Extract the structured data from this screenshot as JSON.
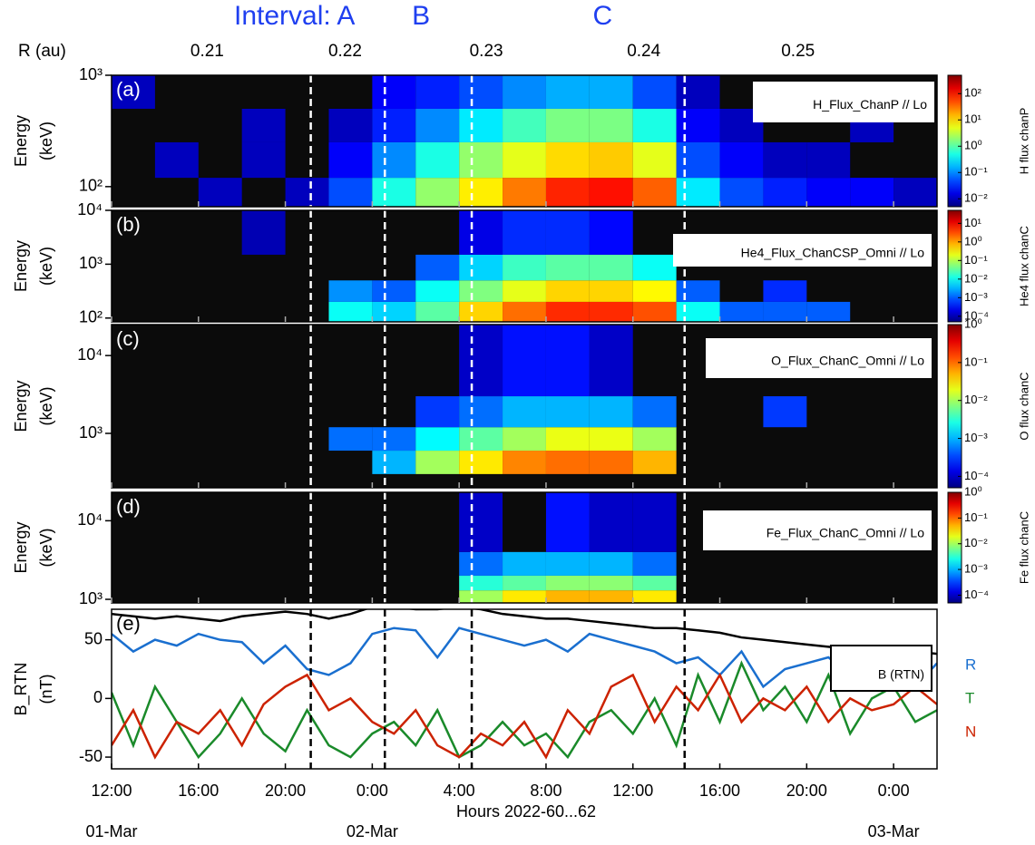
{
  "figure": {
    "xlim": [
      12,
      50
    ],
    "xticks": [
      {
        "value": 12,
        "label": "12:00"
      },
      {
        "value": 16,
        "label": "16:00"
      },
      {
        "value": 20,
        "label": "20:00"
      },
      {
        "value": 24,
        "label": "0:00"
      },
      {
        "value": 28,
        "label": "4:00"
      },
      {
        "value": 32,
        "label": "8:00"
      },
      {
        "value": 36,
        "label": "12:00"
      },
      {
        "value": 40,
        "label": "16:00"
      },
      {
        "value": 44,
        "label": "20:00"
      },
      {
        "value": 48,
        "label": "0:00"
      }
    ],
    "xlabel": "Hours 2022-60...62",
    "date_ticks": [
      {
        "value": 12,
        "label": "01-Mar"
      },
      {
        "value": 24,
        "label": "02-Mar"
      },
      {
        "value": 48,
        "label": "03-Mar"
      }
    ],
    "r_axis": {
      "label": "R (au)",
      "x": [
        16.4,
        22.75,
        29.25,
        36.5,
        43.6
      ],
      "ticks": [
        0.21,
        0.22,
        0.23,
        0.24,
        0.25
      ]
    },
    "intervals": [
      21.17,
      24.58,
      28.58,
      38.38
    ],
    "interval_labels": [
      "Interval: A",
      "B",
      "C"
    ]
  },
  "chart_data": [
    {
      "type": "heatmap",
      "label": "(a)",
      "annotation": "H_Flux_ChanP // Lo",
      "ylabel": [
        "Energy",
        "(keV)"
      ],
      "log_y": true,
      "ylim": [
        66,
        1000
      ],
      "yticks": [
        {
          "value": 100,
          "label": "10²"
        },
        {
          "value": 1000,
          "label": "10³"
        }
      ],
      "x_bins": [
        12,
        14,
        16,
        18,
        20,
        22,
        24,
        26,
        28,
        30,
        32,
        34,
        36,
        38,
        40,
        42,
        44,
        46,
        48,
        50
      ],
      "y_bins": [
        66,
        120,
        250,
        500,
        1000
      ],
      "z": [
        [
          null,
          null,
          0.01,
          null,
          0.01,
          0.05,
          0.5,
          2,
          8,
          30,
          80,
          100,
          40,
          0.3,
          0.05,
          0.03,
          0.02,
          0.02,
          0.01
        ],
        [
          null,
          0.01,
          null,
          0.01,
          null,
          0.02,
          0.1,
          0.5,
          2,
          5,
          10,
          12,
          5,
          0.05,
          0.02,
          0.01,
          0.01,
          null,
          null
        ],
        [
          null,
          null,
          null,
          0.01,
          null,
          0.01,
          0.03,
          0.1,
          0.3,
          0.8,
          1.5,
          1.5,
          0.5,
          0.02,
          0.01,
          null,
          null,
          0.01,
          null
        ],
        [
          0.01,
          null,
          null,
          null,
          null,
          null,
          0.02,
          0.03,
          0.05,
          0.1,
          0.15,
          0.15,
          0.05,
          0.01,
          null,
          null,
          null,
          null,
          null
        ]
      ],
      "colormap": "jet",
      "zlim": [
        0.005,
        500
      ],
      "zticks": [
        {
          "value": 0.01,
          "label": "10⁻²"
        },
        {
          "value": 0.1,
          "label": "10⁻¹"
        },
        {
          "value": 1,
          "label": "10⁰"
        },
        {
          "value": 10,
          "label": "10¹"
        },
        {
          "value": 100,
          "label": "10²"
        }
      ],
      "zlabel": "H flux chanP"
    },
    {
      "type": "heatmap",
      "label": "(b)",
      "annotation": "He4_Flux_ChanCSP_Omni // Lo",
      "ylabel": [
        "Energy",
        "(keV)"
      ],
      "log_y": true,
      "ylim": [
        85,
        10000
      ],
      "yticks": [
        {
          "value": 100,
          "label": "10²"
        },
        {
          "value": 1000,
          "label": "10³"
        },
        {
          "value": 10000,
          "label": "10⁴"
        }
      ],
      "x_bins": [
        12,
        14,
        16,
        18,
        20,
        22,
        24,
        26,
        28,
        30,
        32,
        34,
        36,
        38,
        40,
        42,
        44,
        46,
        48,
        50
      ],
      "y_bins": [
        85,
        200,
        500,
        1500,
        10000
      ],
      "z": [
        [
          null,
          null,
          null,
          null,
          null,
          0.01,
          0.005,
          0.03,
          0.5,
          2,
          5,
          5,
          3,
          0.01,
          0.001,
          0.001,
          0.001,
          null,
          null
        ],
        [
          null,
          null,
          null,
          null,
          null,
          0.002,
          0.001,
          0.01,
          0.05,
          0.2,
          0.5,
          0.5,
          0.3,
          0.001,
          null,
          0.0005,
          null,
          null,
          null
        ],
        [
          null,
          null,
          null,
          null,
          null,
          null,
          null,
          0.001,
          0.005,
          0.02,
          0.03,
          0.03,
          0.01,
          null,
          null,
          null,
          null,
          null,
          null
        ],
        [
          null,
          null,
          null,
          0.0001,
          null,
          null,
          null,
          null,
          0.0002,
          0.0005,
          0.0005,
          0.0003,
          null,
          null,
          null,
          null,
          null,
          null,
          null
        ]
      ],
      "colormap": "jet",
      "zlim": [
        5e-05,
        50
      ],
      "zticks": [
        {
          "value": 0.0001,
          "label": "10⁻⁴"
        },
        {
          "value": 0.001,
          "label": "10⁻³"
        },
        {
          "value": 0.01,
          "label": "10⁻²"
        },
        {
          "value": 0.1,
          "label": "10⁻¹"
        },
        {
          "value": 1,
          "label": "10⁰"
        },
        {
          "value": 10,
          "label": "10¹"
        }
      ],
      "zlabel": "He4 flux chanC"
    },
    {
      "type": "heatmap",
      "label": "(c)",
      "annotation": "O_Flux_ChanC_Omni // Lo",
      "ylabel": [
        "Energy",
        "(keV)"
      ],
      "log_y": true,
      "ylim": [
        200,
        25000
      ],
      "yticks": [
        {
          "value": 1000,
          "label": "10³"
        },
        {
          "value": 10000,
          "label": "10⁴"
        }
      ],
      "x_bins": [
        12,
        14,
        16,
        18,
        20,
        22,
        24,
        26,
        28,
        30,
        32,
        34,
        36,
        38,
        40,
        42,
        44,
        46,
        48,
        50
      ],
      "y_bins": [
        300,
        600,
        1200,
        3000,
        25000
      ],
      "z": [
        [
          null,
          null,
          null,
          null,
          null,
          null,
          0.001,
          0.01,
          0.03,
          0.08,
          0.1,
          0.1,
          0.05,
          null,
          null,
          null,
          null,
          null,
          null
        ],
        [
          null,
          null,
          null,
          null,
          null,
          0.0005,
          0.0005,
          0.002,
          0.005,
          0.01,
          0.02,
          0.02,
          0.01,
          null,
          null,
          null,
          null,
          null,
          null
        ],
        [
          null,
          null,
          null,
          null,
          null,
          null,
          null,
          0.0003,
          0.0005,
          0.001,
          0.001,
          0.001,
          0.0005,
          null,
          null,
          0.0003,
          null,
          null,
          null
        ],
        [
          null,
          null,
          null,
          null,
          null,
          null,
          null,
          null,
          0.0001,
          0.0002,
          0.0002,
          0.0001,
          null,
          null,
          null,
          null,
          null,
          null,
          null
        ]
      ],
      "colormap": "jet",
      "zlim": [
        5e-05,
        1
      ],
      "zticks": [
        {
          "value": 0.0001,
          "label": "10⁻⁴"
        },
        {
          "value": 0.001,
          "label": "10⁻³"
        },
        {
          "value": 0.01,
          "label": "10⁻²"
        },
        {
          "value": 0.1,
          "label": "10⁻¹"
        },
        {
          "value": 1,
          "label": "10⁰"
        }
      ],
      "zlabel": "O flux chanC"
    },
    {
      "type": "heatmap",
      "label": "(d)",
      "annotation": "Fe_Flux_ChanC_Omni // Lo",
      "ylabel": [
        "Energy",
        "(keV)"
      ],
      "log_y": true,
      "ylim": [
        900,
        23000
      ],
      "yticks": [
        {
          "value": 1000,
          "label": "10³"
        },
        {
          "value": 10000,
          "label": "10⁴"
        }
      ],
      "x_bins": [
        12,
        14,
        16,
        18,
        20,
        22,
        24,
        26,
        28,
        30,
        32,
        34,
        36,
        38,
        40,
        42,
        44,
        46,
        48,
        50
      ],
      "y_bins": [
        900,
        1300,
        2000,
        4000,
        23000
      ],
      "z": [
        [
          null,
          null,
          null,
          null,
          null,
          null,
          null,
          null,
          0.01,
          0.03,
          0.05,
          0.05,
          0.03,
          null,
          null,
          null,
          null,
          null,
          null
        ],
        [
          null,
          null,
          null,
          null,
          null,
          null,
          null,
          null,
          0.003,
          0.005,
          0.008,
          0.008,
          0.005,
          null,
          null,
          null,
          null,
          null,
          null
        ],
        [
          null,
          null,
          null,
          null,
          null,
          null,
          null,
          null,
          0.0005,
          0.001,
          0.001,
          0.001,
          0.0005,
          null,
          null,
          null,
          null,
          null,
          null
        ],
        [
          null,
          null,
          null,
          null,
          null,
          null,
          null,
          null,
          0.0001,
          null,
          0.0002,
          0.0001,
          0.0001,
          null,
          null,
          null,
          null,
          null,
          null
        ]
      ],
      "colormap": "jet",
      "zlim": [
        5e-05,
        1
      ],
      "zticks": [
        {
          "value": 0.0001,
          "label": "10⁻⁴"
        },
        {
          "value": 0.001,
          "label": "10⁻³"
        },
        {
          "value": 0.01,
          "label": "10⁻²"
        },
        {
          "value": 0.1,
          "label": "10⁻¹"
        },
        {
          "value": 1,
          "label": "10⁰"
        }
      ],
      "zlabel": "Fe flux chanC"
    },
    {
      "type": "line",
      "label": "(e)",
      "annotation": "B (RTN)",
      "ylabel": [
        "B_RTN",
        "(nT)"
      ],
      "ylim": [
        -60,
        76
      ],
      "yticks": [
        -50,
        0,
        50
      ],
      "x": [
        12,
        13,
        14,
        15,
        16,
        17,
        18,
        19,
        20,
        21,
        22,
        23,
        24,
        25,
        26,
        27,
        28,
        29,
        30,
        31,
        32,
        33,
        34,
        35,
        36,
        37,
        38,
        39,
        40,
        41,
        42,
        43,
        44,
        45,
        46,
        47,
        48,
        49,
        50
      ],
      "series": [
        {
          "color": "#000000",
          "values": [
            72,
            70,
            68,
            70,
            68,
            66,
            70,
            72,
            74,
            72,
            68,
            72,
            78,
            78,
            76,
            76,
            78,
            76,
            72,
            70,
            68,
            68,
            66,
            64,
            62,
            60,
            60,
            58,
            56,
            52,
            50,
            48,
            46,
            44,
            42,
            42,
            40,
            40,
            38
          ]
        },
        {
          "name": "R",
          "color": "#1a6fcf",
          "values": [
            55,
            40,
            50,
            45,
            55,
            50,
            48,
            30,
            45,
            25,
            20,
            30,
            55,
            60,
            58,
            35,
            60,
            55,
            50,
            45,
            50,
            40,
            55,
            50,
            45,
            40,
            30,
            35,
            20,
            40,
            10,
            25,
            30,
            35,
            20,
            30,
            25,
            10,
            30
          ]
        },
        {
          "name": "T",
          "color": "#1a8a2a",
          "values": [
            5,
            -40,
            10,
            -20,
            -50,
            -30,
            0,
            -30,
            -45,
            -10,
            -40,
            -50,
            -30,
            -20,
            -40,
            -10,
            -50,
            -40,
            -20,
            -40,
            -30,
            -50,
            -20,
            -10,
            -30,
            0,
            -40,
            20,
            -20,
            30,
            -10,
            10,
            -20,
            20,
            -30,
            0,
            10,
            -20,
            -10
          ]
        },
        {
          "name": "N",
          "color": "#cc2200",
          "values": [
            -40,
            -10,
            -50,
            -20,
            -30,
            -10,
            -40,
            -5,
            10,
            20,
            -10,
            0,
            -20,
            -30,
            -10,
            -40,
            -50,
            -30,
            -40,
            -20,
            -50,
            -10,
            -30,
            10,
            20,
            -20,
            10,
            -10,
            20,
            -20,
            0,
            -10,
            10,
            -20,
            0,
            -10,
            -5,
            10,
            -5
          ]
        }
      ]
    }
  ]
}
